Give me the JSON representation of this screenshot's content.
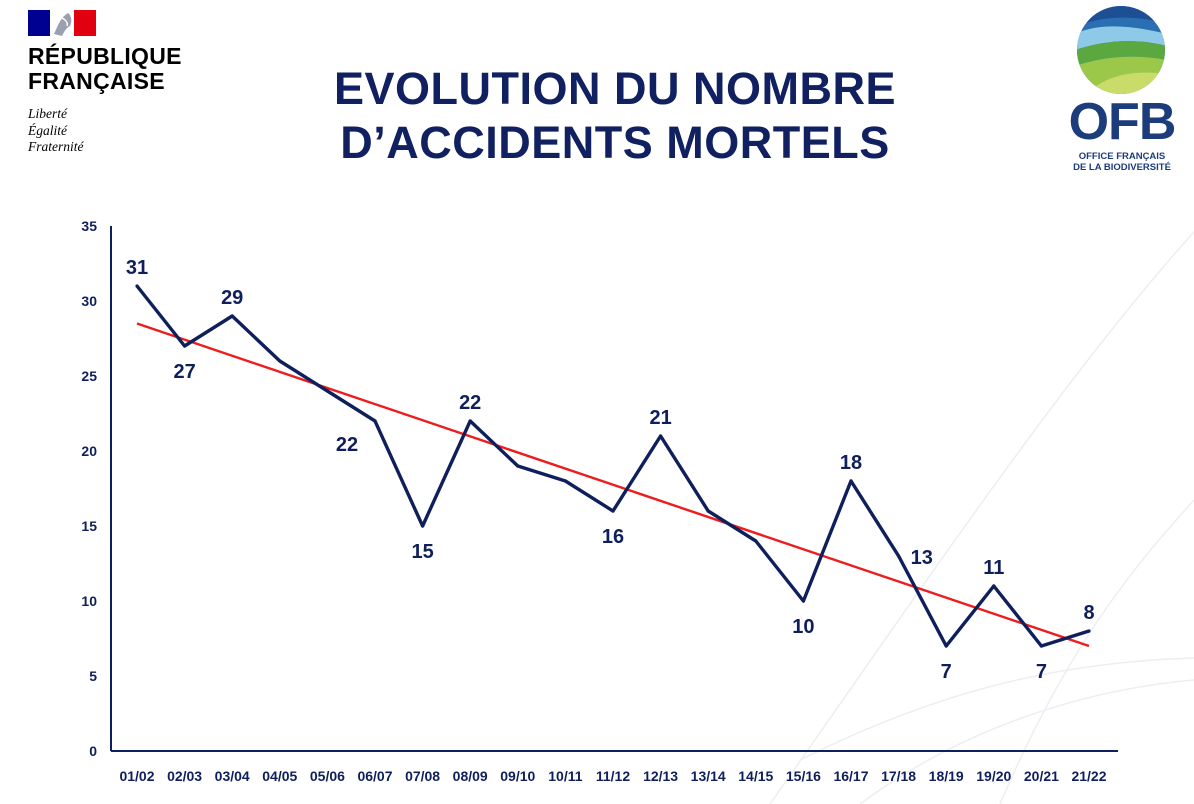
{
  "header": {
    "rf_name": "RÉPUBLIQUE\nFRANÇAISE",
    "rf_motto": "Liberté\nÉgalité\nFraternité",
    "title": "EVOLUTION DU NOMBRE D’ACCIDENTS MORTELS",
    "ofb_logo_text": "OFB",
    "ofb_subtitle": "OFFICE FRANÇAIS\nDE LA BIODIVERSITÉ"
  },
  "colors": {
    "title": "#102060",
    "series_line": "#0f1f5c",
    "trend_line": "#ee1c1c",
    "axis": "#0f1f5c",
    "flag_blue": "#000091",
    "flag_red": "#e1000f",
    "ofb_blue": "#1c3c7c"
  },
  "chart_data": {
    "type": "line",
    "categories": [
      "01/02",
      "02/03",
      "03/04",
      "04/05",
      "05/06",
      "06/07",
      "07/08",
      "08/09",
      "09/10",
      "10/11",
      "11/12",
      "12/13",
      "13/14",
      "14/15",
      "15/16",
      "16/17",
      "17/18",
      "18/19",
      "19/20",
      "20/21",
      "21/22"
    ],
    "series": [
      {
        "values": [
          31,
          27,
          29,
          26,
          24,
          22,
          15,
          22,
          19,
          18,
          16,
          21,
          16,
          14,
          10,
          18,
          13,
          7,
          11,
          7,
          8
        ]
      }
    ],
    "data_labels": [
      {
        "index": 0,
        "text": "31",
        "pos": "above"
      },
      {
        "index": 1,
        "text": "27",
        "pos": "below"
      },
      {
        "index": 2,
        "text": "29",
        "pos": "above"
      },
      {
        "index": 5,
        "text": "22",
        "pos": "below-left"
      },
      {
        "index": 6,
        "text": "15",
        "pos": "below"
      },
      {
        "index": 7,
        "text": "22",
        "pos": "above"
      },
      {
        "index": 10,
        "text": "16",
        "pos": "below"
      },
      {
        "index": 11,
        "text": "21",
        "pos": "above"
      },
      {
        "index": 14,
        "text": "10",
        "pos": "below"
      },
      {
        "index": 15,
        "text": "18",
        "pos": "above"
      },
      {
        "index": 16,
        "text": "13",
        "pos": "right"
      },
      {
        "index": 17,
        "text": "7",
        "pos": "below"
      },
      {
        "index": 18,
        "text": "11",
        "pos": "above"
      },
      {
        "index": 19,
        "text": "7",
        "pos": "below"
      },
      {
        "index": 20,
        "text": "8",
        "pos": "above"
      }
    ],
    "trendline": {
      "type": "linear",
      "start_value": 28.5,
      "end_value": 7.0
    },
    "y_ticks": [
      "0",
      "5",
      "10",
      "15",
      "20",
      "25",
      "30",
      "35"
    ],
    "ylim": [
      0,
      35
    ],
    "xlabel": "",
    "ylabel": "",
    "grid": false,
    "legend": "none"
  }
}
